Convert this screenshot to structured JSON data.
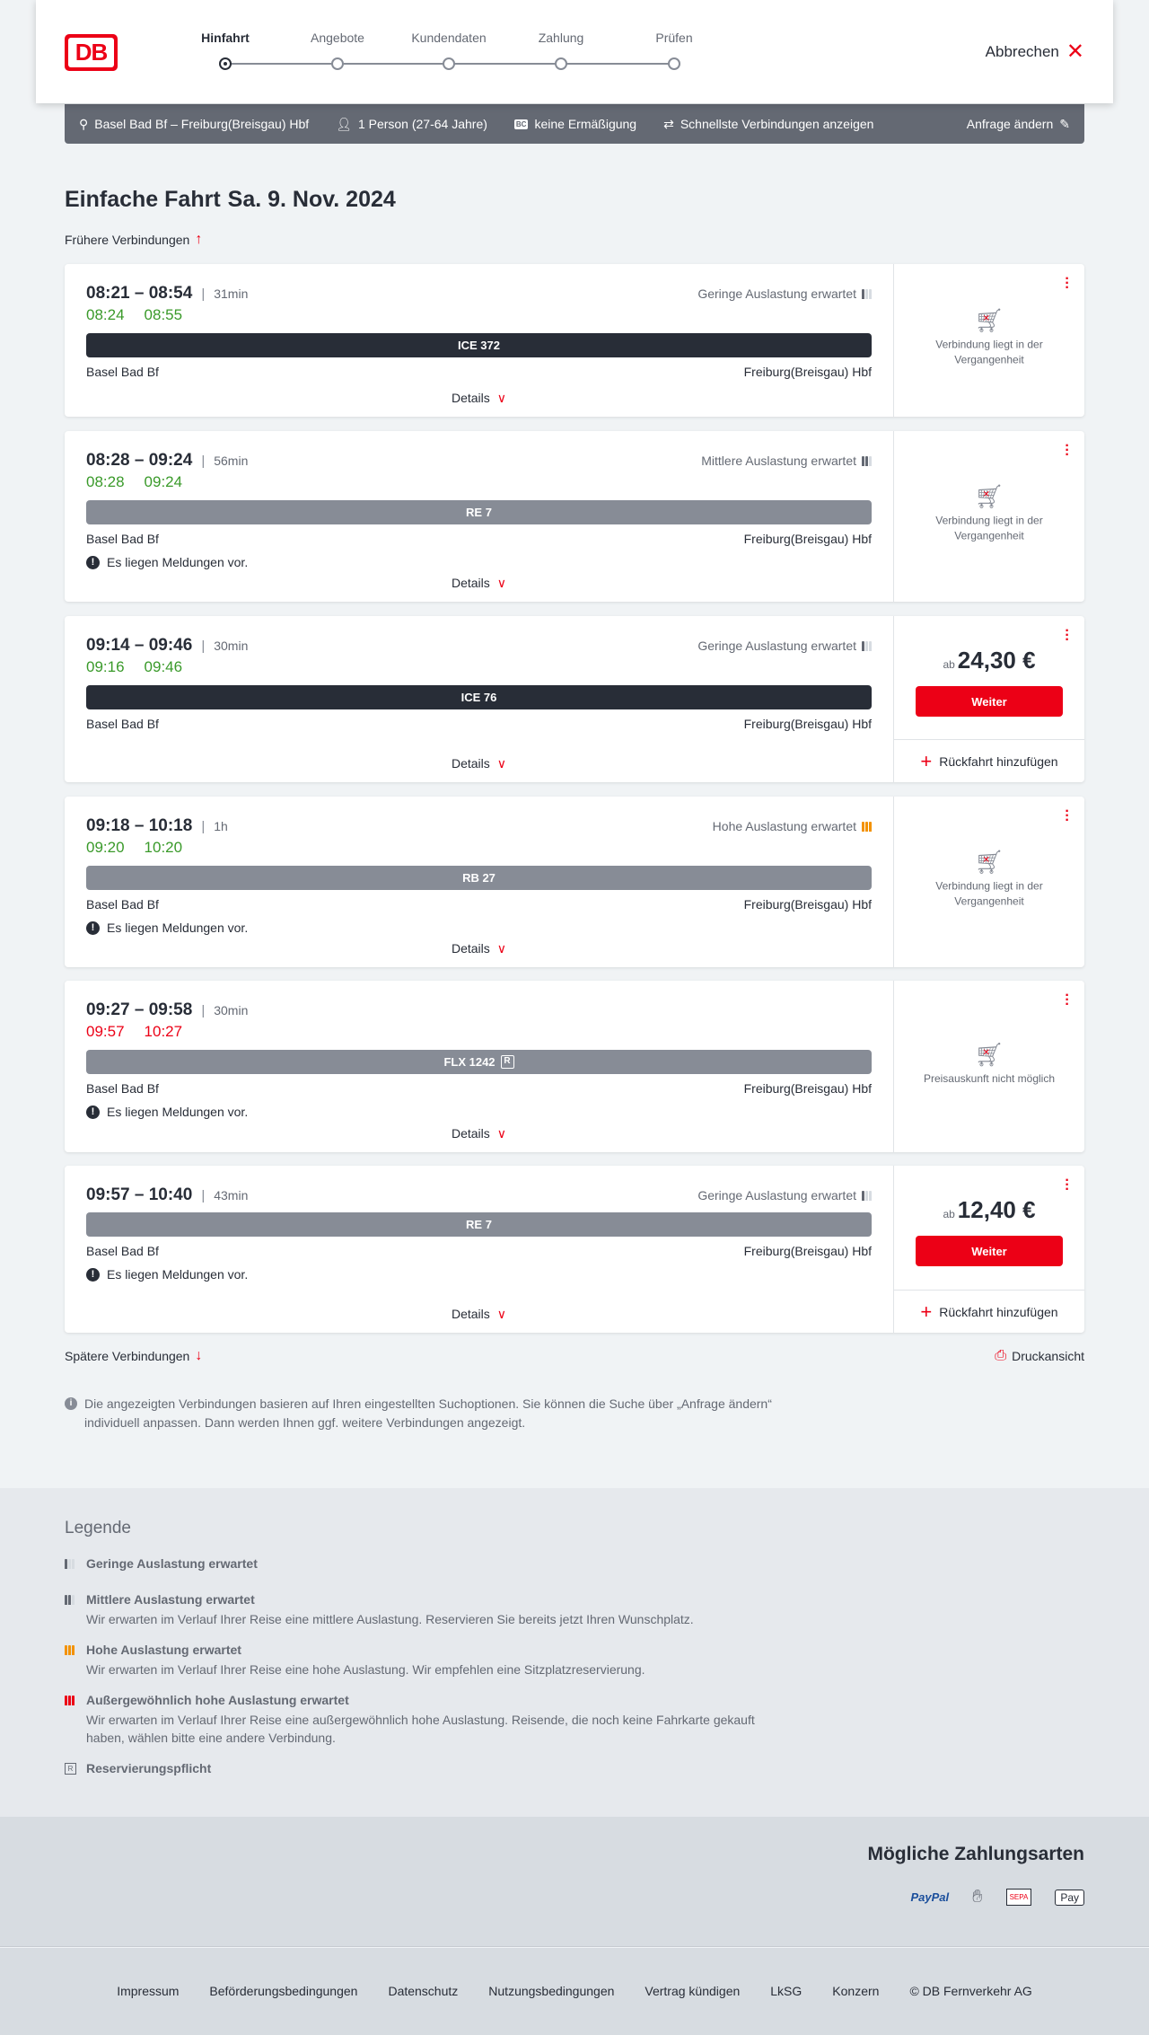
{
  "header": {
    "logo_text": "DB",
    "steps": [
      "Hinfahrt",
      "Angebote",
      "Kundendaten",
      "Zahlung",
      "Prüfen"
    ],
    "active_step": 0,
    "cancel_label": "Abbrechen"
  },
  "search": {
    "route": "Basel Bad Bf – Freiburg(Breisgau) Hbf",
    "passengers": "1 Person (27-64 Jahre)",
    "discount": "keine Ermäßigung",
    "option": "Schnellste Verbindungen anzeigen",
    "edit_label": "Anfrage ändern"
  },
  "page": {
    "title": "Einfache Fahrt",
    "date": "Sa. 9. Nov. 2024",
    "earlier_label": "Frühere Verbindungen",
    "later_label": "Spätere Verbindungen",
    "print_label": "Druckansicht",
    "info_text": "Die angezeigten Verbindungen basieren auf Ihren eingestellten Suchoptionen. Sie können die Suche über „Anfrage ändern“ individuell anpassen. Dann werden Ihnen ggf. weitere Verbindungen angezeigt."
  },
  "common": {
    "from": "Basel Bad Bf",
    "to": "Freiburg(Breisgau) Hbf",
    "details_label": "Details",
    "message_label": "Es liegen Meldungen vor.",
    "price_prefix": "ab",
    "continue_label": "Weiter",
    "return_label": "Rückfahrt hinzufügen"
  },
  "colors": {
    "accent": "#ec0016",
    "on_time": "#3a9a2a",
    "delayed": "#ec0016",
    "train_dark": "#282d37",
    "train_regional": "#878c96",
    "occupancy_high": "#f39200"
  },
  "connections": [
    {
      "times": "08:21 – 08:54",
      "duration": "31min",
      "rt_dep": "08:24",
      "rt_arr": "08:55",
      "rt_status": "on_time",
      "occupancy": "Geringe Auslastung erwartet",
      "occ_level": 1,
      "train": "ICE 372",
      "train_style": "dark",
      "reservation": false,
      "message": false,
      "status_text": "Verbindung liegt in der Vergangenheit",
      "price": null
    },
    {
      "times": "08:28 – 09:24",
      "duration": "56min",
      "rt_dep": "08:28",
      "rt_arr": "09:24",
      "rt_status": "on_time",
      "occupancy": "Mittlere Auslastung erwartet",
      "occ_level": 2,
      "train": "RE 7",
      "train_style": "regional",
      "reservation": false,
      "message": true,
      "status_text": "Verbindung liegt in der Vergangenheit",
      "price": null
    },
    {
      "times": "09:14 – 09:46",
      "duration": "30min",
      "rt_dep": "09:16",
      "rt_arr": "09:46",
      "rt_status": "on_time",
      "occupancy": "Geringe Auslastung erwartet",
      "occ_level": 1,
      "train": "ICE 76",
      "train_style": "dark",
      "reservation": false,
      "message": false,
      "status_text": null,
      "price": "24,30 €"
    },
    {
      "times": "09:18 – 10:18",
      "duration": "1h",
      "rt_dep": "09:20",
      "rt_arr": "10:20",
      "rt_status": "on_time",
      "occupancy": "Hohe Auslastung erwartet",
      "occ_level": 3,
      "train": "RB 27",
      "train_style": "regional",
      "reservation": false,
      "message": true,
      "status_text": "Verbindung liegt in der Vergangenheit",
      "price": null
    },
    {
      "times": "09:27 – 09:58",
      "duration": "30min",
      "rt_dep": "09:57",
      "rt_arr": "10:27",
      "rt_status": "delayed",
      "occupancy": null,
      "occ_level": 0,
      "train": "FLX 1242",
      "train_style": "regional",
      "reservation": true,
      "reservation_mark": "R",
      "message": true,
      "status_text": "Preisauskunft nicht möglich",
      "price": null
    },
    {
      "times": "09:57 – 10:40",
      "duration": "43min",
      "rt_dep": null,
      "rt_arr": null,
      "rt_status": null,
      "occupancy": "Geringe Auslastung erwartet",
      "occ_level": 1,
      "train": "RE 7",
      "train_style": "regional",
      "reservation": false,
      "message": true,
      "status_text": null,
      "price": "12,40 €"
    }
  ],
  "legend": {
    "title": "Legende",
    "items": [
      {
        "icon": "occupancy-low-icon",
        "level": 1,
        "title": "Geringe Auslastung erwartet",
        "text": ""
      },
      {
        "icon": "occupancy-medium-icon",
        "level": 2,
        "title": "Mittlere Auslastung erwartet",
        "text": "Wir erwarten im Verlauf Ihrer Reise eine mittlere Auslastung. Reservieren Sie bereits jetzt Ihren Wunschplatz."
      },
      {
        "icon": "occupancy-high-icon",
        "level": 3,
        "title": "Hohe Auslastung erwartet",
        "text": "Wir erwarten im Verlauf Ihrer Reise eine hohe Auslastung. Wir empfehlen eine Sitzplatzreservierung."
      },
      {
        "icon": "occupancy-exceptional-icon",
        "level": 4,
        "title": "Außergewöhnlich hohe Auslastung erwartet",
        "text": "Wir erwarten im Verlauf Ihrer Reise eine außergewöhnlich hohe Auslastung. Reisende, die noch keine Fahrkarte gekauft haben, wählen bitte eine andere Verbindung."
      },
      {
        "icon": "reservation-required-icon",
        "level": 0,
        "title": "Reservierungspflicht",
        "text": ""
      }
    ]
  },
  "payment": {
    "title": "Mögliche Zahlungsarten",
    "methods": [
      "PayPal",
      "SEPA",
      "Pay"
    ]
  },
  "footer": {
    "links": [
      "Impressum",
      "Beförderungsbedingungen",
      "Datenschutz",
      "Nutzungsbedingungen",
      "Vertrag kündigen",
      "LkSG",
      "Konzern",
      "© DB Fernverkehr AG"
    ]
  }
}
